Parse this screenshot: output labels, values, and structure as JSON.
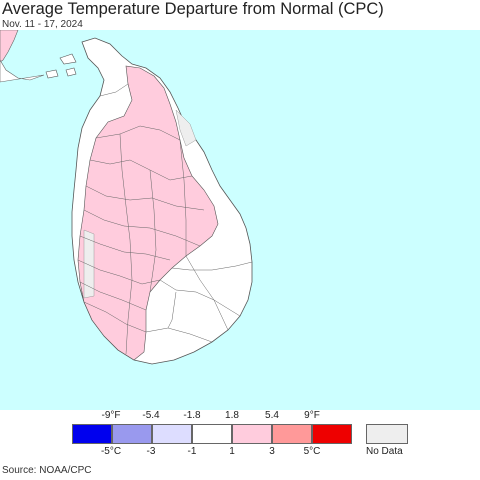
{
  "header": {
    "title": "Average Temperature Departure from Normal (CPC)",
    "date_range": "Nov. 11 - 17, 2024"
  },
  "map": {
    "ocean_color": "#ccffff",
    "land_near_normal_color": "#ffffff",
    "land_warm_color": "#ffccdd",
    "no_data_color": "#eeeeee",
    "border_color": "#666666"
  },
  "legend": {
    "fahrenheit_ticks": [
      "-9°F",
      "-5.4",
      "-1.8",
      "1.8",
      "5.4",
      "9°F"
    ],
    "celsius_ticks": [
      "-5°C",
      "-3",
      "-1",
      "1",
      "3",
      "5°C"
    ],
    "colors": [
      "#0000ee",
      "#9999ee",
      "#ddddff",
      "#ffffff",
      "#ffccdd",
      "#ff9999",
      "#ee0000"
    ],
    "no_data_label": "No Data",
    "no_data_color": "#eeeeee"
  },
  "footer": {
    "source": "Source: NOAA/CPC"
  }
}
